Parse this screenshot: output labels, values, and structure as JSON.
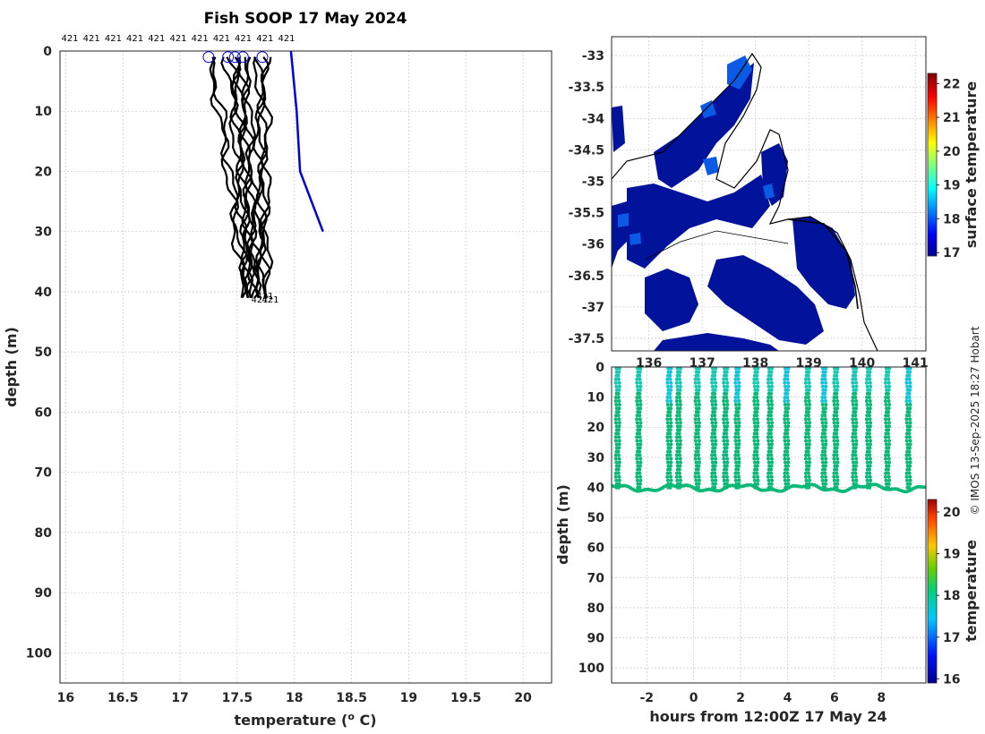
{
  "credit": "© IMOS 13-Sep-2025 18:27 Hobart",
  "chart_data": [
    {
      "type": "line",
      "title": "Fish SOOP 17 May 2024",
      "xlabel": "temperature (",
      "xlabel_sup": "o",
      "xlabel_tail": " C)",
      "ylabel": "depth (m)",
      "xlim": [
        15.95,
        20.25
      ],
      "ylim": [
        105,
        0
      ],
      "y_reversed": true,
      "grid": true,
      "xticks": [
        "16",
        "16.5",
        "17",
        "17.5",
        "18",
        "18.5",
        "19",
        "19.5",
        "20"
      ],
      "yticks": [
        "0",
        "10",
        "20",
        "30",
        "40",
        "50",
        "60",
        "70",
        "80",
        "90",
        "100"
      ],
      "profile_id_label": "421",
      "profile_count": 13,
      "profile_color": "#000000",
      "profile_start_temps": [
        17.23,
        17.25,
        17.4,
        17.44,
        17.46,
        17.5,
        17.53,
        17.55,
        17.57,
        17.68,
        17.7,
        17.72,
        17.75
      ],
      "profile_end_temps": [
        17.56,
        17.58,
        17.59,
        17.6,
        17.61,
        17.62,
        17.64,
        17.66,
        17.68,
        17.7,
        17.72,
        17.74,
        17.76
      ],
      "profile_max_depth": 41,
      "top_marker_temps": [
        17.25,
        17.42,
        17.48,
        17.55,
        17.72
      ],
      "marker_color": "#0000ee",
      "climatology": {
        "color": "#0000dd",
        "temperature": [
          17.97,
          18.02,
          18.05,
          18.25
        ],
        "depth": [
          0,
          10,
          20,
          30
        ]
      }
    },
    {
      "type": "heatmap",
      "xlim": [
        135.3,
        141.2
      ],
      "ylim": [
        -37.7,
        -32.7
      ],
      "xticks": [
        "136",
        "137",
        "138",
        "139",
        "140",
        "141"
      ],
      "yticks": [
        "-33",
        "-33.5",
        "-34",
        "-34.5",
        "-35",
        "-35.5",
        "-36",
        "-36.5",
        "-37",
        "-37.5"
      ],
      "colorbar_label": "surface temperature",
      "colorbar_ticks": [
        "17",
        "18",
        "19",
        "20",
        "21",
        "22"
      ],
      "colorbar_range": [
        16.9,
        22.3
      ]
    },
    {
      "type": "scatter",
      "xlabel": "hours from 12:00Z 17 May 24",
      "ylabel": "depth (m)",
      "xlim": [
        -3.5,
        9.9
      ],
      "ylim": [
        105,
        0
      ],
      "xticks": [
        "-2",
        "0",
        "2",
        "4",
        "6",
        "8"
      ],
      "yticks": [
        "0",
        "10",
        "20",
        "30",
        "40",
        "50",
        "60",
        "70",
        "80",
        "90",
        "100"
      ],
      "profile_hours": [
        -3.3,
        -2.4,
        -1.1,
        -0.7,
        0.1,
        0.8,
        1.3,
        1.8,
        2.6,
        3.2,
        3.9,
        4.8,
        5.5,
        6.0,
        6.8,
        7.4,
        8.2,
        9.1
      ],
      "bottom_depth": 41,
      "colorbar_label": "temperature",
      "colorbar_ticks": [
        "16",
        "17",
        "18",
        "19",
        "20"
      ],
      "colorbar_range": [
        15.9,
        20.3
      ]
    }
  ]
}
